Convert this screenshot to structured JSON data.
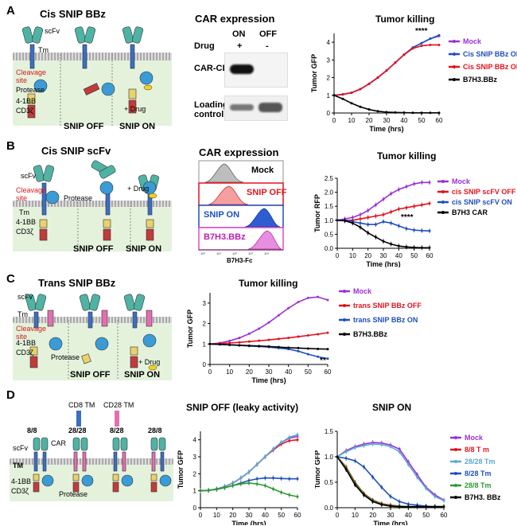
{
  "panels": {
    "A": {
      "letter": "A",
      "schematic": {
        "title": "Cis SNIP BBz",
        "labels": {
          "scfv": "scFv",
          "tm": "Tm",
          "cleavage": "Cleavage site",
          "protease": "Protease",
          "bb": "4-1BB",
          "cd3": "CD3ζ",
          "drug": "+ Drug"
        },
        "states": [
          "SNIP OFF",
          "SNIP ON"
        ]
      },
      "blot": {
        "title": "CAR expression",
        "columns": [
          "ON",
          "OFF"
        ],
        "drug_label": "Drug",
        "drug_signs": [
          "+",
          "-"
        ],
        "rows": [
          "CAR-CD3z",
          "Loading control"
        ]
      },
      "chart": {
        "title": "Tumor killing",
        "ylabel": "Tumor GFP",
        "xlabel": "Time (hrs)",
        "sig": "****",
        "xticks": [
          "0",
          "10",
          "20",
          "30",
          "40",
          "50",
          "60"
        ],
        "yticks": [
          "0",
          "1",
          "2",
          "3",
          "4"
        ],
        "legend": [
          "Mock",
          "Cis SNIP BBz ON",
          "Cis SNIP BBz  OFF",
          "B7H3.BBz"
        ]
      }
    },
    "B": {
      "letter": "B",
      "schematic": {
        "title": "Cis SNIP scFv",
        "labels": {
          "scfv": "scFv",
          "cleavage": "Cleavage site",
          "protease": "Protease",
          "tm": "Tm",
          "bb": "4-1BB",
          "cd3": "CD3ζ",
          "drug": "+ Drug"
        },
        "states": [
          "SNIP OFF",
          "SNIP ON"
        ]
      },
      "flow": {
        "title": "CAR expression",
        "rows": [
          "Mock",
          "SNIP OFF",
          "SNIP  ON",
          "B7H3.BBz"
        ],
        "xlabel": "B7H3-Fc"
      },
      "chart": {
        "title": "Tumor killing",
        "ylabel": "Tumor RFP",
        "xlabel": "Time (hrs)",
        "sig": "****",
        "xticks": [
          "0",
          "10",
          "20",
          "30",
          "40",
          "50",
          "60"
        ],
        "yticks": [
          "0.0",
          "0.5",
          "1.0",
          "1.5",
          "2.0",
          "2.5"
        ],
        "legend": [
          "Mock",
          "cis SNIP scFV OFF",
          "cis SNIP scFV ON",
          "B7H3 CAR"
        ]
      }
    },
    "C": {
      "letter": "C",
      "schematic": {
        "title": "Trans SNIP BBz",
        "labels": {
          "scfv": "scFv",
          "tm": "Tm",
          "cleavage": "Cleavage site",
          "bb": "4-1BB",
          "cd3": "CD3ζ",
          "protease": "Protease",
          "drug": "+ Drug"
        },
        "states": [
          "SNIP OFF",
          "SNIP ON"
        ]
      },
      "chart": {
        "title": "Tumor killing",
        "ylabel": "Tumor GFP",
        "xlabel": "Time (hrs)",
        "sig": "**",
        "xticks": [
          "0",
          "10",
          "20",
          "30",
          "40",
          "50",
          "60"
        ],
        "yticks": [
          "0",
          "1",
          "2",
          "3"
        ],
        "legend": [
          "Mock",
          "trans  SNIP BBz OFF",
          "trans  SNIP BBz ON",
          "B7H3.BBz"
        ]
      }
    },
    "D": {
      "letter": "D",
      "schematic": {
        "tm_legend": [
          "CD8 TM",
          "CD28 TM"
        ],
        "constructs": [
          "8/8",
          "28/28",
          "8/28",
          "28/8"
        ],
        "labels": {
          "scfv": "scFv",
          "car": "CAR",
          "tm": "TM",
          "bb": "4-1BB",
          "cd3": "CD3ζ",
          "protease": "Protease"
        }
      },
      "chart_off": {
        "title": "SNIP OFF (leaky activity)",
        "ylabel": "Tumor GFP",
        "xlabel": "Time (hrs)",
        "xticks": [
          "0",
          "10",
          "20",
          "30",
          "40",
          "50",
          "60"
        ],
        "yticks": [
          "0",
          "1",
          "2",
          "3",
          "4"
        ]
      },
      "chart_on": {
        "title": "SNIP ON",
        "ylabel": "Tumor GFP",
        "xlabel": "Time (hrs)",
        "xticks": [
          "0",
          "10",
          "20",
          "30",
          "40",
          "50",
          "60"
        ],
        "yticks": [
          "0.0",
          "0.5",
          "1.0",
          "1.5"
        ],
        "legend": [
          "Mock",
          "8/8  T m",
          "28/28  Tm",
          "8/28  Tm",
          "28/8  Tm",
          "B7H3. BBz"
        ]
      }
    }
  },
  "colors": {
    "mock": "#9b30d9",
    "red": "#e0141e",
    "blue": "#1f4fbf",
    "black": "#000000",
    "lightblue": "#5aa9d6",
    "green": "#2e9a2e",
    "teal": "#3fa99b",
    "cell": "#e4f2dc"
  },
  "chart_data": [
    {
      "type": "line",
      "panel": "A",
      "title": "Tumor killing",
      "xlabel": "Time (hrs)",
      "ylabel": "Tumor GFP",
      "xlim": [
        0,
        60
      ],
      "ylim": [
        0,
        4.5
      ],
      "x": [
        0,
        5,
        10,
        15,
        20,
        25,
        30,
        35,
        40,
        45,
        50,
        55,
        60
      ],
      "series": [
        {
          "name": "Mock",
          "values": [
            1,
            1.05,
            1.15,
            1.35,
            1.65,
            2.0,
            2.4,
            2.85,
            3.3,
            3.7,
            3.95,
            4.2,
            4.35
          ]
        },
        {
          "name": "Cis SNIP BBz ON",
          "values": [
            1,
            1.05,
            1.15,
            1.35,
            1.65,
            2.0,
            2.4,
            2.85,
            3.3,
            3.7,
            3.95,
            4.2,
            4.4
          ]
        },
        {
          "name": "Cis SNIP BBz  OFF",
          "values": [
            1,
            1.05,
            1.15,
            1.35,
            1.65,
            2.0,
            2.4,
            2.85,
            3.3,
            3.65,
            3.8,
            3.85,
            3.85
          ]
        },
        {
          "name": "B7H3.BBz",
          "values": [
            1,
            0.8,
            0.55,
            0.35,
            0.2,
            0.1,
            0.05,
            0.03,
            0.02,
            0.01,
            0.01,
            0.01,
            0.01
          ]
        }
      ]
    },
    {
      "type": "line",
      "panel": "B",
      "title": "Tumor killing",
      "xlabel": "Time (hrs)",
      "ylabel": "Tumor RFP",
      "xlim": [
        0,
        60
      ],
      "ylim": [
        0,
        2.5
      ],
      "x": [
        0,
        5,
        10,
        15,
        20,
        25,
        30,
        35,
        40,
        45,
        50,
        55,
        60
      ],
      "series": [
        {
          "name": "Mock",
          "values": [
            1,
            1.05,
            1.1,
            1.2,
            1.35,
            1.55,
            1.75,
            1.95,
            2.1,
            2.2,
            2.3,
            2.35,
            2.35
          ]
        },
        {
          "name": "cis SNIP scFV OFF",
          "values": [
            1,
            1.0,
            1.0,
            1.05,
            1.1,
            1.15,
            1.2,
            1.3,
            1.4,
            1.45,
            1.5,
            1.55,
            1.6
          ]
        },
        {
          "name": "cis SNIP scFV ON",
          "values": [
            1,
            1.0,
            0.95,
            0.9,
            0.85,
            0.85,
            0.95,
            0.9,
            0.8,
            0.7,
            0.65,
            0.63,
            0.62
          ]
        },
        {
          "name": "B7H3 CAR",
          "values": [
            1,
            0.98,
            0.9,
            0.75,
            0.55,
            0.4,
            0.25,
            0.15,
            0.08,
            0.05,
            0.03,
            0.02,
            0.02
          ]
        }
      ]
    },
    {
      "type": "line",
      "panel": "C",
      "title": "Tumor killing",
      "xlabel": "Time (hrs)",
      "ylabel": "Tumor GFP",
      "xlim": [
        0,
        60
      ],
      "ylim": [
        0,
        3.5
      ],
      "x": [
        0,
        5,
        10,
        15,
        20,
        25,
        30,
        35,
        40,
        45,
        50,
        55,
        60
      ],
      "series": [
        {
          "name": "Mock",
          "values": [
            1,
            1.05,
            1.15,
            1.3,
            1.5,
            1.75,
            2.05,
            2.4,
            2.75,
            3.05,
            3.25,
            3.3,
            3.15
          ]
        },
        {
          "name": "trans  SNIP BBz OFF",
          "values": [
            1,
            1.02,
            1.05,
            1.08,
            1.12,
            1.16,
            1.2,
            1.25,
            1.3,
            1.36,
            1.42,
            1.48,
            1.55
          ]
        },
        {
          "name": "trans  SNIP BBz ON",
          "values": [
            1,
            0.98,
            0.96,
            0.93,
            0.9,
            0.88,
            0.85,
            0.8,
            0.75,
            0.65,
            0.5,
            0.38,
            0.28
          ]
        },
        {
          "name": "B7H3.BBz",
          "values": [
            1,
            0.98,
            0.96,
            0.94,
            0.92,
            0.9,
            0.88,
            0.85,
            0.82,
            0.8,
            0.78,
            0.76,
            0.75
          ]
        }
      ]
    },
    {
      "type": "line",
      "panel": "D",
      "title": "SNIP OFF (leaky activity)",
      "xlabel": "Time (hrs)",
      "ylabel": "Tumor GFP",
      "xlim": [
        0,
        60
      ],
      "ylim": [
        0,
        4.5
      ],
      "x": [
        0,
        5,
        10,
        15,
        20,
        25,
        30,
        35,
        40,
        45,
        50,
        55,
        60
      ],
      "series": [
        {
          "name": "Mock",
          "values": [
            1,
            1.02,
            1.1,
            1.25,
            1.45,
            1.75,
            2.1,
            2.55,
            3.0,
            3.45,
            3.85,
            4.1,
            4.2
          ]
        },
        {
          "name": "8/8  T m",
          "values": [
            1,
            1.02,
            1.1,
            1.25,
            1.45,
            1.75,
            2.1,
            2.55,
            3.0,
            3.4,
            3.75,
            3.95,
            4.0
          ]
        },
        {
          "name": "28/28  Tm",
          "values": [
            1,
            1.02,
            1.1,
            1.25,
            1.45,
            1.75,
            2.1,
            2.55,
            3.0,
            3.45,
            3.85,
            4.15,
            4.3
          ]
        },
        {
          "name": "8/28  Tm",
          "values": [
            1,
            1.02,
            1.08,
            1.18,
            1.3,
            1.45,
            1.6,
            1.7,
            1.75,
            1.75,
            1.72,
            1.7,
            1.7
          ]
        },
        {
          "name": "28/8  Tm",
          "values": [
            1,
            1.02,
            1.08,
            1.18,
            1.3,
            1.4,
            1.45,
            1.4,
            1.3,
            1.1,
            0.9,
            0.75,
            0.65
          ]
        }
      ]
    },
    {
      "type": "line",
      "panel": "D",
      "title": "SNIP ON",
      "xlabel": "Time (hrs)",
      "ylabel": "Tumor GFP",
      "xlim": [
        0,
        60
      ],
      "ylim": [
        0,
        1.5
      ],
      "x": [
        0,
        5,
        10,
        15,
        20,
        25,
        30,
        35,
        40,
        45,
        50,
        55,
        60
      ],
      "series": [
        {
          "name": "Mock",
          "values": [
            1,
            1.12,
            1.2,
            1.25,
            1.28,
            1.27,
            1.23,
            1.15,
            0.9,
            0.65,
            0.4,
            0.25,
            0.15
          ]
        },
        {
          "name": "8/8  T m",
          "values": [
            1,
            0.8,
            0.5,
            0.28,
            0.15,
            0.08,
            0.05,
            0.03,
            0.02,
            0.02,
            0.02,
            0.02,
            0.02
          ]
        },
        {
          "name": "28/28  Tm",
          "values": [
            1,
            1.1,
            1.18,
            1.22,
            1.25,
            1.24,
            1.2,
            1.1,
            0.85,
            0.6,
            0.38,
            0.22,
            0.14
          ]
        },
        {
          "name": "8/28  Tm",
          "values": [
            1,
            0.97,
            0.92,
            0.8,
            0.6,
            0.4,
            0.22,
            0.12,
            0.07,
            0.05,
            0.03,
            0.02,
            0.02
          ]
        },
        {
          "name": "28/8  Tm",
          "values": [
            1,
            0.78,
            0.48,
            0.27,
            0.14,
            0.07,
            0.04,
            0.03,
            0.02,
            0.02,
            0.02,
            0.02,
            0.02
          ]
        },
        {
          "name": "B7H3. BBz",
          "values": [
            1,
            0.75,
            0.45,
            0.25,
            0.12,
            0.06,
            0.03,
            0.02,
            0.02,
            0.02,
            0.02,
            0.02,
            0.02
          ]
        }
      ]
    }
  ]
}
